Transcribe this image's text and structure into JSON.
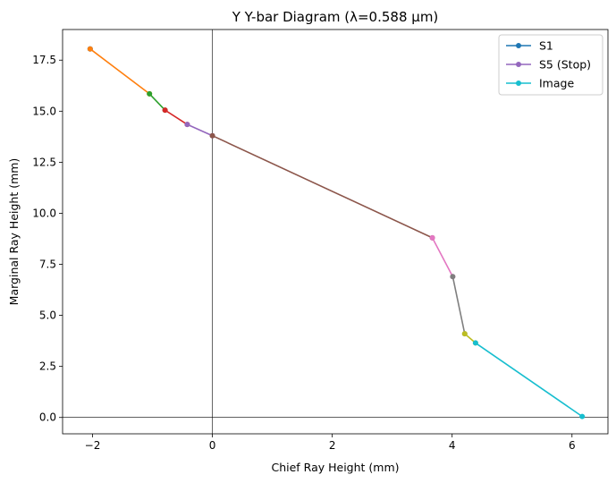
{
  "chart_data": {
    "type": "line",
    "title": "Y Y-bar Diagram (λ=0.588 µm)",
    "xlabel": "Chief Ray Height (mm)",
    "ylabel": "Marginal Ray Height (mm)",
    "xlim": [
      -2.5,
      6.6
    ],
    "ylim": [
      -0.8,
      19.0
    ],
    "xticks": [
      -2,
      0,
      2,
      4,
      6
    ],
    "xtick_labels": [
      "−2",
      "0",
      "2",
      "4",
      "6"
    ],
    "yticks": [
      0.0,
      2.5,
      5.0,
      7.5,
      10.0,
      12.5,
      15.0,
      17.5
    ],
    "ytick_labels": [
      "0.0",
      "2.5",
      "5.0",
      "7.5",
      "10.0",
      "12.5",
      "15.0",
      "17.5"
    ],
    "reference_lines": {
      "x0": true,
      "y0": true
    },
    "grid": false,
    "legend_position": "top-right",
    "segments": [
      {
        "name": "S1",
        "color": "#1f77b4",
        "x": [
          -2.04,
          -2.04
        ],
        "y": [
          18.05,
          18.05
        ]
      },
      {
        "name": "",
        "color": "#ff7f0e",
        "x": [
          -2.04,
          -1.05
        ],
        "y": [
          18.05,
          15.85
        ]
      },
      {
        "name": "",
        "color": "#2ca02c",
        "x": [
          -1.05,
          -0.79
        ],
        "y": [
          15.85,
          15.05
        ]
      },
      {
        "name": "",
        "color": "#d62728",
        "x": [
          -0.79,
          -0.42
        ],
        "y": [
          15.05,
          14.35
        ]
      },
      {
        "name": "S5 (Stop)",
        "color": "#9467bd",
        "x": [
          -0.42,
          0.0
        ],
        "y": [
          14.35,
          13.8
        ]
      },
      {
        "name": "",
        "color": "#8c564b",
        "x": [
          0.0,
          3.67
        ],
        "y": [
          13.8,
          8.8
        ]
      },
      {
        "name": "",
        "color": "#e377c2",
        "x": [
          3.67,
          4.01
        ],
        "y": [
          8.8,
          6.9
        ]
      },
      {
        "name": "",
        "color": "#7f7f7f",
        "x": [
          4.01,
          4.21
        ],
        "y": [
          6.9,
          4.1
        ]
      },
      {
        "name": "",
        "color": "#bcbd22",
        "x": [
          4.21,
          4.39
        ],
        "y": [
          4.1,
          3.65
        ]
      },
      {
        "name": "Image",
        "color": "#17becf",
        "x": [
          4.39,
          6.17
        ],
        "y": [
          3.65,
          0.05
        ]
      }
    ],
    "legend": [
      {
        "label": "S1",
        "color": "#1f77b4"
      },
      {
        "label": "S5 (Stop)",
        "color": "#9467bd"
      },
      {
        "label": "Image",
        "color": "#17becf"
      }
    ]
  }
}
